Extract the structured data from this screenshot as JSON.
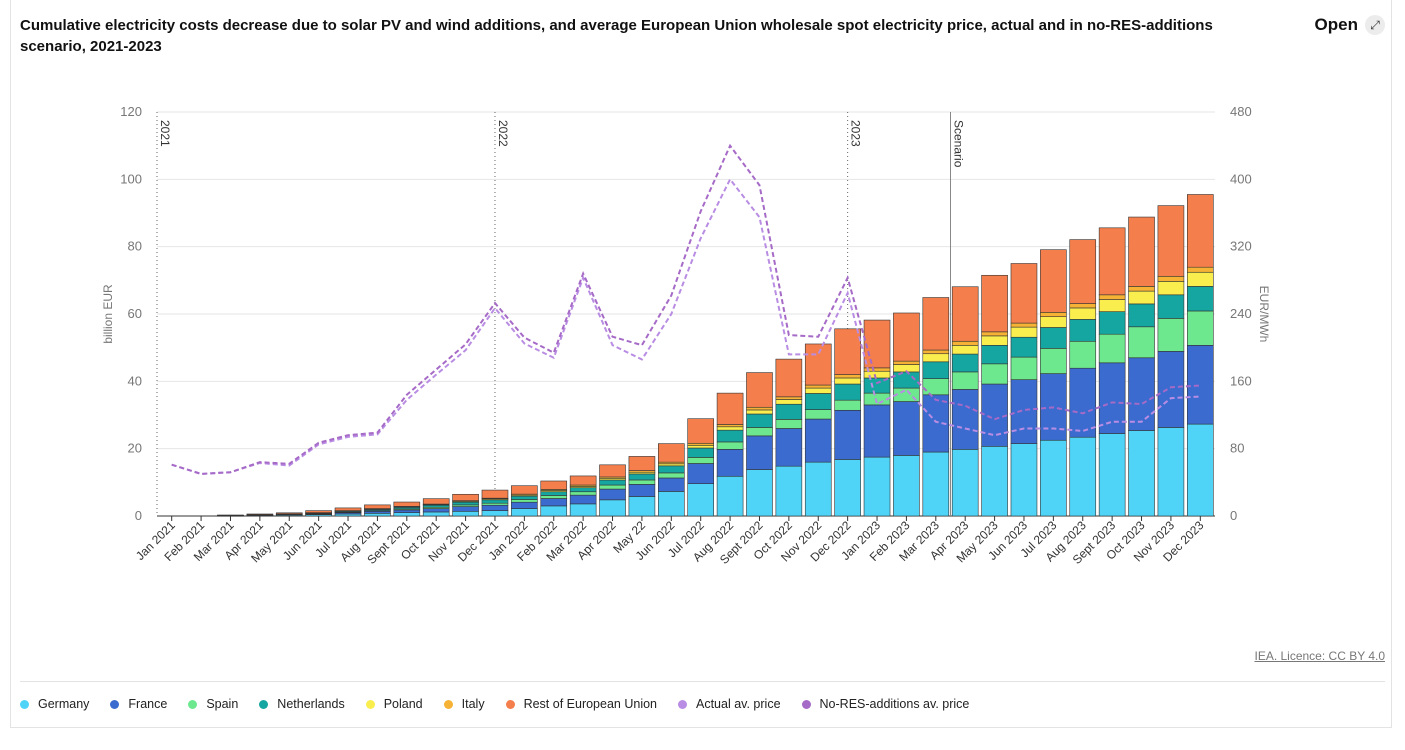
{
  "header": {
    "title": "Cumulative electricity costs decrease due to solar PV and wind additions, and average European Union wholesale spot electricity price, actual and in no-RES-additions scenario, 2021-2023",
    "open_label": "Open",
    "open_icon": "expand-icon"
  },
  "footer": {
    "licence": "IEA. Licence: CC BY 4.0"
  },
  "chart_data": {
    "type": "bar",
    "stacked": true,
    "categories": [
      "Jan 2021",
      "Feb 2021",
      "Mar 2021",
      "Apr 2021",
      "May 2021",
      "Jun 2021",
      "Jul 2021",
      "Aug 2021",
      "Sept 2021",
      "Oct 2021",
      "Nov 2021",
      "Dec 2021",
      "Jan 2022",
      "Feb 2022",
      "Mar 2022",
      "Apr 2022",
      "May 22",
      "Jun 2022",
      "Jul 2022",
      "Aug 2022",
      "Sept 2022",
      "Oct 2022",
      "Nov 2022",
      "Dec 2022",
      "Jan 2023",
      "Feb 2023",
      "Mar 2023",
      "Apr 2023",
      "May 2023",
      "Jun 2023",
      "Jul 2023",
      "Aug 2023",
      "Sept 2023",
      "Oct 2023",
      "Nov 2023",
      "Dec 2023"
    ],
    "ylabel": "billion EUR",
    "ylim": [
      0,
      120
    ],
    "yticks": [
      0,
      20,
      40,
      60,
      80,
      100,
      120
    ],
    "y2label": "EUR/MWh",
    "y2lim": [
      0,
      480
    ],
    "y2ticks": [
      0,
      80,
      160,
      240,
      320,
      400,
      480
    ],
    "annotations": [
      "2021",
      "2022",
      "2023",
      "Scenario"
    ],
    "series": [
      {
        "name": "Germany",
        "color": "#4fd4f7",
        "values": [
          0,
          0,
          0.1,
          0.2,
          0.3,
          0.4,
          0.6,
          0.8,
          1.0,
          1.2,
          1.4,
          1.6,
          2.2,
          3.0,
          3.6,
          4.8,
          5.8,
          7.3,
          9.6,
          11.8,
          13.8,
          14.8,
          16.0,
          16.8,
          17.5,
          18.0,
          19.0,
          19.8,
          20.7,
          21.5,
          22.5,
          23.4,
          24.5,
          25.4,
          26.3,
          27.3
        ]
      },
      {
        "name": "France",
        "color": "#3b6bcf",
        "values": [
          0,
          0,
          0.05,
          0.1,
          0.15,
          0.2,
          0.4,
          0.6,
          0.8,
          1.0,
          1.4,
          1.6,
          1.9,
          2.2,
          2.6,
          3.2,
          3.6,
          4.0,
          6.0,
          8.0,
          10.0,
          11.2,
          12.8,
          14.6,
          15.5,
          16.0,
          17.0,
          17.8,
          18.5,
          19.0,
          19.8,
          20.5,
          21.0,
          21.6,
          22.6,
          23.4
        ]
      },
      {
        "name": "Spain",
        "color": "#6ee88f",
        "values": [
          0,
          0,
          0,
          0,
          0.05,
          0.1,
          0.15,
          0.2,
          0.3,
          0.4,
          0.5,
          0.6,
          0.8,
          0.9,
          1.0,
          1.2,
          1.3,
          1.5,
          1.8,
          2.2,
          2.5,
          2.7,
          2.8,
          3.0,
          3.5,
          4.0,
          4.8,
          5.2,
          6.0,
          6.7,
          7.5,
          8.0,
          8.5,
          9.2,
          9.8,
          10.2
        ]
      },
      {
        "name": "Netherlands",
        "color": "#16a6a1",
        "values": [
          0,
          0,
          0.05,
          0.1,
          0.15,
          0.2,
          0.3,
          0.4,
          0.5,
          0.6,
          0.8,
          1.0,
          1.0,
          1.1,
          1.2,
          1.5,
          1.8,
          2.1,
          2.8,
          3.5,
          4.0,
          4.5,
          4.8,
          4.8,
          4.5,
          4.8,
          5.0,
          5.3,
          5.5,
          5.9,
          6.2,
          6.5,
          6.7,
          6.8,
          7.0,
          7.3
        ]
      },
      {
        "name": "Poland",
        "color": "#f9ee4e",
        "values": [
          0,
          0,
          0,
          0,
          0,
          0.05,
          0.1,
          0.1,
          0.15,
          0.2,
          0.25,
          0.3,
          0.3,
          0.4,
          0.4,
          0.5,
          0.5,
          0.6,
          0.8,
          1.0,
          1.2,
          1.4,
          1.6,
          1.8,
          2.0,
          2.2,
          2.4,
          2.6,
          2.8,
          3.0,
          3.2,
          3.4,
          3.6,
          3.8,
          4.0,
          4.2
        ]
      },
      {
        "name": "Italy",
        "color": "#f5b235",
        "values": [
          0,
          0,
          0,
          0,
          0,
          0.05,
          0.05,
          0.1,
          0.1,
          0.15,
          0.2,
          0.2,
          0.3,
          0.3,
          0.4,
          0.4,
          0.5,
          0.5,
          0.6,
          0.7,
          0.8,
          0.8,
          0.9,
          1.0,
          1.0,
          1.0,
          1.1,
          1.2,
          1.2,
          1.2,
          1.3,
          1.3,
          1.4,
          1.4,
          1.5,
          1.5
        ]
      },
      {
        "name": "Rest of European Union",
        "color": "#f47f4c",
        "values": [
          0,
          0,
          0.1,
          0.2,
          0.3,
          0.6,
          0.8,
          1.1,
          1.3,
          1.6,
          1.9,
          2.4,
          2.5,
          2.5,
          2.7,
          3.6,
          4.2,
          5.5,
          7.3,
          9.3,
          10.3,
          11.2,
          12.2,
          13.6,
          14.2,
          14.3,
          15.6,
          16.2,
          16.8,
          17.7,
          18.6,
          19.0,
          19.9,
          20.6,
          21.0,
          21.6
        ]
      }
    ],
    "lines": [
      {
        "name": "Actual av. price",
        "color": "#b98de3",
        "axis": "right",
        "values": [
          61,
          50,
          52,
          63,
          60,
          85,
          94,
          97,
          138,
          168,
          197,
          247,
          205,
          188,
          283,
          203,
          186,
          240,
          330,
          400,
          355,
          192,
          192,
          265,
          133,
          150,
          112,
          104,
          96,
          104,
          104,
          101,
          112,
          112,
          140,
          142
        ]
      },
      {
        "name": "No-RES-additions av. price",
        "color": "#a66ac7",
        "axis": "right",
        "values": [
          61,
          50,
          52,
          64,
          62,
          87,
          96,
          99,
          144,
          174,
          204,
          253,
          212,
          194,
          288,
          213,
          203,
          262,
          362,
          440,
          393,
          215,
          213,
          283,
          158,
          172,
          138,
          131,
          115,
          126,
          129,
          122,
          135,
          133,
          153,
          155
        ]
      }
    ],
    "markers": [
      {
        "label": "2021",
        "at": "Jan 2021",
        "style": "dotted"
      },
      {
        "label": "2022",
        "at": "Jan 2022",
        "style": "dotted"
      },
      {
        "label": "2023",
        "at": "Jan 2023",
        "style": "dotted"
      },
      {
        "label": "Scenario",
        "at": "Mar 2023",
        "style": "solid"
      }
    ],
    "legend_position": "bottom-left",
    "grid": true
  }
}
